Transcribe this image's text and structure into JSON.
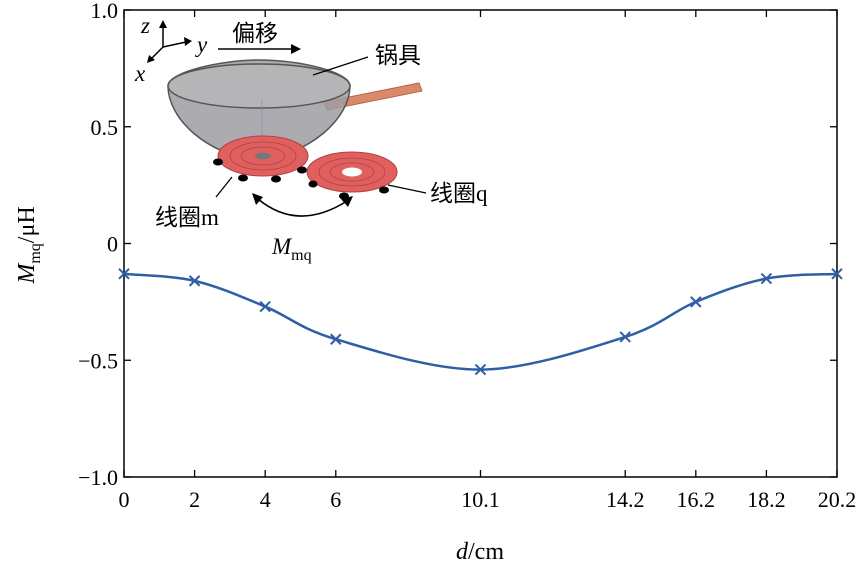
{
  "chart_data": {
    "type": "line",
    "x": [
      0,
      2,
      4,
      6,
      10.1,
      14.2,
      16.2,
      18.2,
      20.2
    ],
    "x_tick_labels": [
      "0",
      "2",
      "4",
      "6",
      "10.1",
      "14.2",
      "16.2",
      "18.2",
      "20.2"
    ],
    "y": [
      -0.13,
      -0.16,
      -0.27,
      -0.41,
      -0.54,
      -0.4,
      -0.25,
      -0.15,
      -0.13
    ],
    "y_tick_values": [
      1.0,
      0.5,
      0,
      -0.5,
      -1.0
    ],
    "y_tick_labels": [
      "1.0",
      "0.5",
      "0",
      "−0.5",
      "−1.0"
    ],
    "xlim": [
      0,
      20.2
    ],
    "ylim": [
      -1.0,
      1.0
    ],
    "xlabel": {
      "var": "d",
      "unit": "/cm"
    },
    "ylabel": {
      "var": "M",
      "sub": "mq",
      "unit": "/μH"
    },
    "marker": "x",
    "line_color": "#2e5fa5",
    "grid": false,
    "inset": {
      "axis_z": "z",
      "axis_y": "y",
      "axis_x": "x",
      "offset_label": "偏移",
      "pot_label": "锅具",
      "coil_m_label": "线圈m",
      "coil_q_label": "线圈q",
      "mutual_var": "M",
      "mutual_sub": "mq",
      "pot_color": "#a7a7aa",
      "coil_color": "#e06060",
      "handle_color": "#d98a6c"
    }
  }
}
